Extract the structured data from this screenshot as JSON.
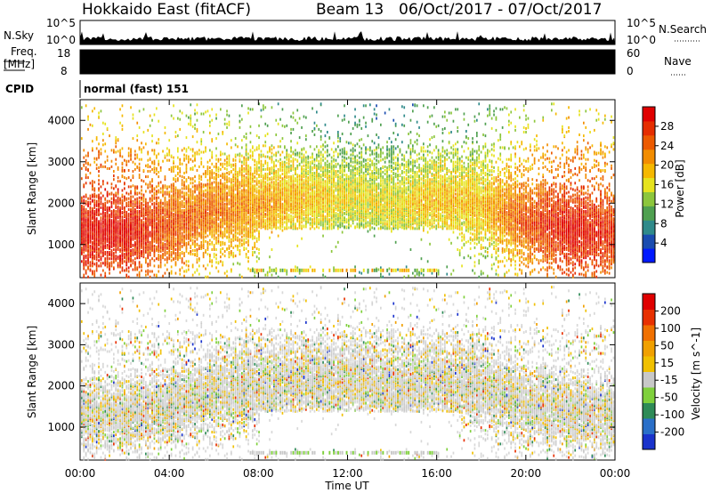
{
  "header": {
    "station": "Hokkaido East (fitACF)",
    "beam": "Beam 13",
    "date_range": "06/Oct/2017 - 07/Oct/2017"
  },
  "top_panels": {
    "nsky_label": "N.Sky",
    "nsky_ticks": [
      "10^5",
      "10^0"
    ],
    "nsky_right_ticks": [
      "10^5",
      "10^0"
    ],
    "nsearch_label": "N.Search",
    "freq_label": "Freq.",
    "freq_unit": "[MHz]",
    "freq_ticks": [
      "18",
      "8"
    ],
    "nave_ticks": [
      "60",
      "0"
    ],
    "nave_label": "Nave",
    "cpid_label": "CPID",
    "cpid_value": "normal (fast) 151"
  },
  "chart_data": [
    {
      "type": "heatmap",
      "title": "",
      "xlabel": "",
      "ylabel": "Slant Range [km]",
      "y_ticks": [
        "1000",
        "2000",
        "3000",
        "4000"
      ],
      "ylim": [
        200,
        4500
      ],
      "xlim": [
        "00:00",
        "24:00"
      ],
      "colorbar": {
        "label": "Power [dB]",
        "ticks": [
          "4",
          "8",
          "12",
          "16",
          "20",
          "24",
          "28"
        ],
        "colors": [
          "#0019ff",
          "#1a4cb0",
          "#2f8a8a",
          "#4fa050",
          "#8cc63c",
          "#e6e31e",
          "#f5b800",
          "#f28c00",
          "#ec5a00",
          "#e52d00",
          "#e00000"
        ]
      },
      "series": [
        {
          "x": [
            "00:00",
            "02:00",
            "04:00",
            "06:00",
            "08:00",
            "10:00",
            "12:00",
            "14:00",
            "16:00",
            "18:00",
            "20:00",
            "22:00",
            "24:00"
          ],
          "band_center_km": [
            1400,
            1300,
            1500,
            1900,
            2000,
            2100,
            2200,
            2000,
            2100,
            2000,
            1600,
            1400,
            1300
          ],
          "typical_power_db": [
            28,
            28,
            24,
            22,
            20,
            18,
            16,
            16,
            18,
            18,
            24,
            28,
            26
          ]
        }
      ]
    },
    {
      "type": "heatmap",
      "title": "",
      "xlabel": "Time UT",
      "ylabel": "Slant Range [km]",
      "x_ticks": [
        "00:00",
        "04:00",
        "08:00",
        "12:00",
        "16:00",
        "20:00",
        "00:00"
      ],
      "y_ticks": [
        "1000",
        "2000",
        "3000",
        "4000"
      ],
      "ylim": [
        200,
        4500
      ],
      "colorbar": {
        "label": "Velocity [m s^-1]",
        "ticks": [
          "200",
          "100",
          "50",
          "15",
          "-15",
          "-50",
          "-100",
          "-200"
        ],
        "colors": [
          "#1a33cc",
          "#2a6fc8",
          "#2e8b57",
          "#7fd03c",
          "#c8c8c8",
          "#f0c000",
          "#f0a000",
          "#f07000",
          "#e83000",
          "#e00000"
        ]
      },
      "series": [
        {
          "x": [
            "00:00",
            "04:00",
            "08:00",
            "12:00",
            "16:00",
            "20:00",
            "24:00"
          ],
          "typical_velocity_ms": [
            -15,
            -15,
            0,
            15,
            0,
            -15,
            -15
          ]
        }
      ]
    }
  ]
}
